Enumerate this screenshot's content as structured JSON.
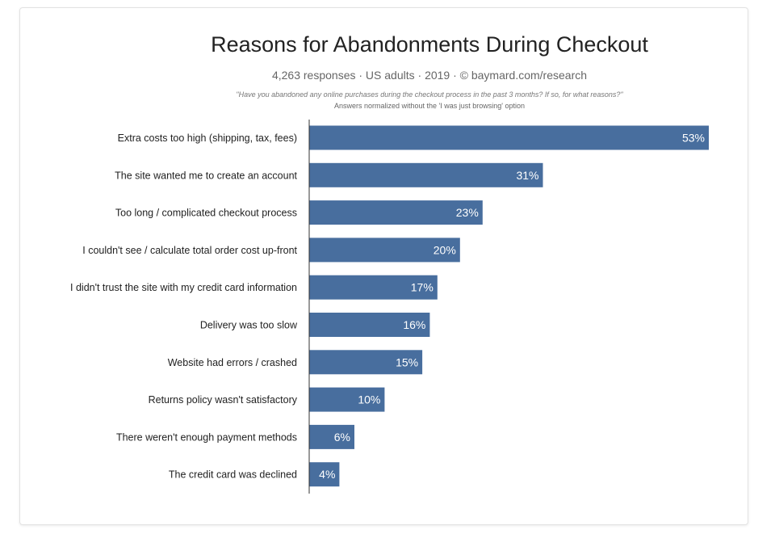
{
  "title": "Reasons for Abandonments During Checkout",
  "subtitle": "4,263 responses  ·  US adults  ·  2019  ·  ©  baymard.com/research",
  "question": "\"Have you abandoned any online purchases during the checkout process in the past 3 months? If so, for what reasons?\"",
  "note": "Answers normalized without the 'I was just browsing' option",
  "colors": {
    "bar": "#486e9e",
    "bar_label": "#ffffff",
    "axis": "#333333",
    "category_text": "#222222"
  },
  "chart_data": {
    "type": "bar",
    "orientation": "horizontal",
    "categories": [
      "Extra costs too high (shipping, tax, fees)",
      "The site wanted me to create an account",
      "Too long / complicated checkout process",
      "I couldn't see / calculate total order cost up-front",
      "I didn't trust the site with my credit card information",
      "Delivery was too slow",
      "Website had errors / crashed",
      "Returns policy wasn't satisfactory",
      "There weren't enough payment methods",
      "The credit card was declined"
    ],
    "values": [
      53,
      31,
      23,
      20,
      17,
      16,
      15,
      10,
      6,
      4
    ],
    "value_labels": [
      "53%",
      "31%",
      "23%",
      "20%",
      "17%",
      "16%",
      "15%",
      "10%",
      "6%",
      "4%"
    ],
    "xlim": [
      0,
      53
    ],
    "grid": false,
    "legend": "none"
  }
}
